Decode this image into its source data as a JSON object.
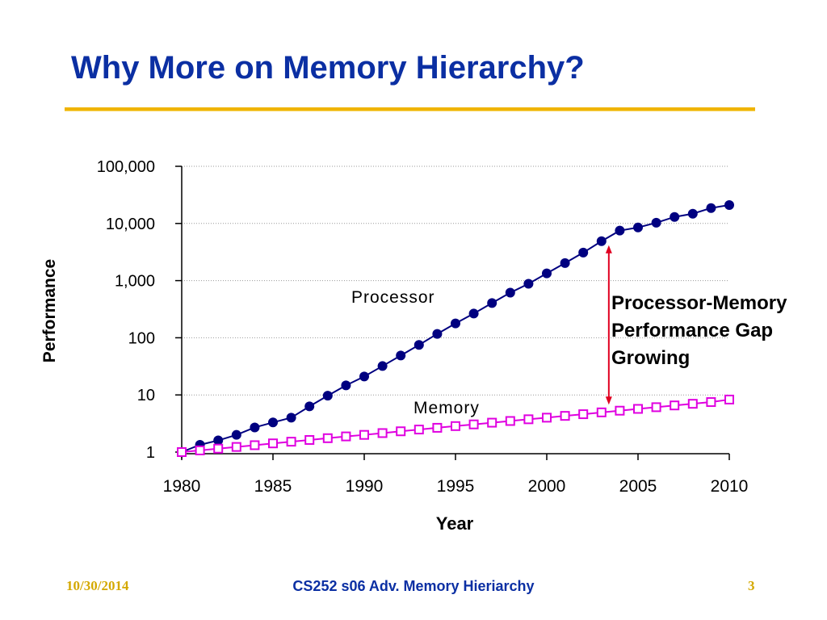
{
  "slide": {
    "title": "Why More on Memory Hierarchy?",
    "footer_date": "10/30/2014",
    "footer_course": "CS252 s06 Adv. Memory Hieriarchy",
    "page_number": "3"
  },
  "colors": {
    "title": "#0b2fa3",
    "rule": "#f0b400",
    "processor": "#000080",
    "memory": "#e000e0",
    "arrow": "#e00020"
  },
  "chart_data": {
    "type": "line",
    "title": "",
    "xlabel": "Year",
    "ylabel": "Performance",
    "yscale": "log",
    "xlim": [
      1980,
      2010
    ],
    "ylim": [
      1,
      100000
    ],
    "xticks": [
      1980,
      1985,
      1990,
      1995,
      2000,
      2005,
      2010
    ],
    "xtick_labels": [
      "1980",
      "1985",
      "1990",
      "1995",
      "2000",
      "2005",
      "2010"
    ],
    "yticks": [
      1,
      10,
      100,
      1000,
      10000,
      100000
    ],
    "ytick_labels": [
      "1",
      "10",
      "100",
      "1,000",
      "10,000",
      "100,000"
    ],
    "grid": "horizontal dotted",
    "x": [
      1980,
      1981,
      1982,
      1983,
      1984,
      1985,
      1986,
      1987,
      1988,
      1989,
      1990,
      1991,
      1992,
      1993,
      1994,
      1995,
      1996,
      1997,
      1998,
      1999,
      2000,
      2001,
      2002,
      2003,
      2004,
      2005,
      2006,
      2007,
      2008,
      2009,
      2010
    ],
    "series": [
      {
        "name": "Processor",
        "marker": "filled-circle",
        "values": [
          1,
          1.34,
          1.6,
          2.0,
          2.7,
          3.3,
          4.0,
          6.3,
          9.7,
          14.7,
          21,
          32,
          49,
          75,
          117,
          178,
          265,
          405,
          615,
          880,
          1340,
          2030,
          3090,
          4900,
          7500,
          8500,
          10300,
          13000,
          14800,
          18600,
          21000
        ]
      },
      {
        "name": "Memory",
        "marker": "open-square",
        "values": [
          1,
          1.07,
          1.15,
          1.23,
          1.32,
          1.42,
          1.52,
          1.63,
          1.75,
          1.88,
          2.0,
          2.15,
          2.31,
          2.48,
          2.66,
          2.85,
          3.05,
          3.27,
          3.5,
          3.75,
          4.0,
          4.3,
          4.6,
          4.95,
          5.3,
          5.7,
          6.1,
          6.55,
          7.0,
          7.5,
          8.3
        ]
      }
    ],
    "annotations": {
      "processor_label": "Processor",
      "memory_label": "Memory",
      "gap_lines": [
        "Processor-Memory",
        "Performance Gap",
        "Growing"
      ],
      "gap_arrow_year": 2003.4
    }
  }
}
